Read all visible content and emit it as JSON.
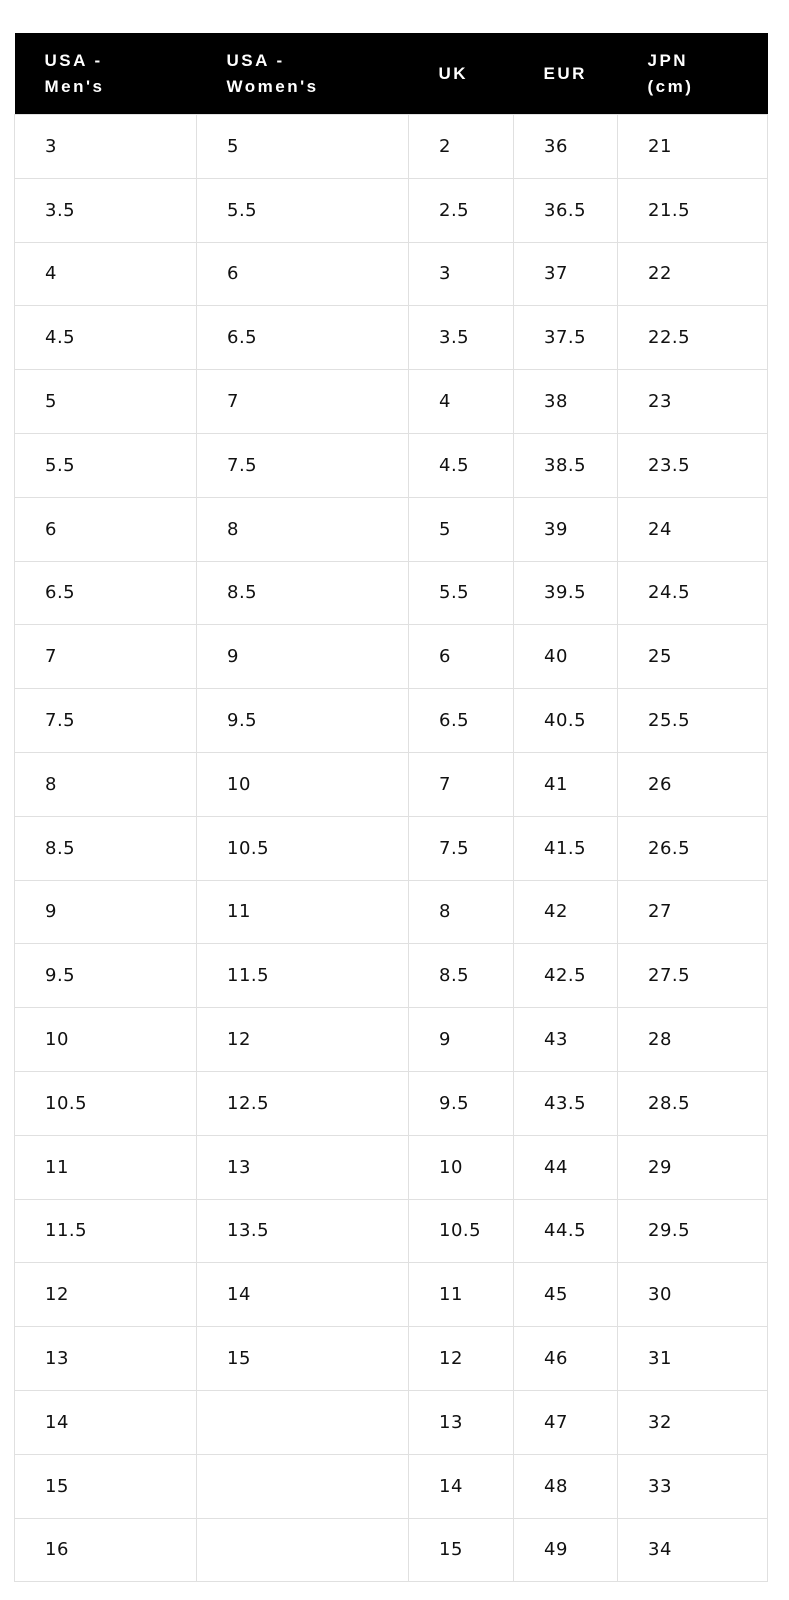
{
  "headers": [
    [
      "USA -",
      "Men's"
    ],
    [
      "USA -",
      "Women's"
    ],
    [
      "UK"
    ],
    [
      "EUR"
    ],
    [
      "JPN",
      "(cm)"
    ]
  ],
  "rows": [
    [
      "3",
      "5",
      "2",
      "36",
      "21"
    ],
    [
      "3.5",
      "5.5",
      "2.5",
      "36.5",
      "21.5"
    ],
    [
      "4",
      "6",
      "3",
      "37",
      "22"
    ],
    [
      "4.5",
      "6.5",
      "3.5",
      "37.5",
      "22.5"
    ],
    [
      "5",
      "7",
      "4",
      "38",
      "23"
    ],
    [
      "5.5",
      "7.5",
      "4.5",
      "38.5",
      "23.5"
    ],
    [
      "6",
      "8",
      "5",
      "39",
      "24"
    ],
    [
      "6.5",
      "8.5",
      "5.5",
      "39.5",
      "24.5"
    ],
    [
      "7",
      "9",
      "6",
      "40",
      "25"
    ],
    [
      "7.5",
      "9.5",
      "6.5",
      "40.5",
      "25.5"
    ],
    [
      "8",
      "10",
      "7",
      "41",
      "26"
    ],
    [
      "8.5",
      "10.5",
      "7.5",
      "41.5",
      "26.5"
    ],
    [
      "9",
      "11",
      "8",
      "42",
      "27"
    ],
    [
      "9.5",
      "11.5",
      "8.5",
      "42.5",
      "27.5"
    ],
    [
      "10",
      "12",
      "9",
      "43",
      "28"
    ],
    [
      "10.5",
      "12.5",
      "9.5",
      "43.5",
      "28.5"
    ],
    [
      "11",
      "13",
      "10",
      "44",
      "29"
    ],
    [
      "11.5",
      "13.5",
      "10.5",
      "44.5",
      "29.5"
    ],
    [
      "12",
      "14",
      "11",
      "45",
      "30"
    ],
    [
      "13",
      "15",
      "12",
      "46",
      "31"
    ],
    [
      "14",
      "",
      "13",
      "47",
      "32"
    ],
    [
      "15",
      "",
      "14",
      "48",
      "33"
    ],
    [
      "16",
      "",
      "15",
      "49",
      "34"
    ]
  ]
}
